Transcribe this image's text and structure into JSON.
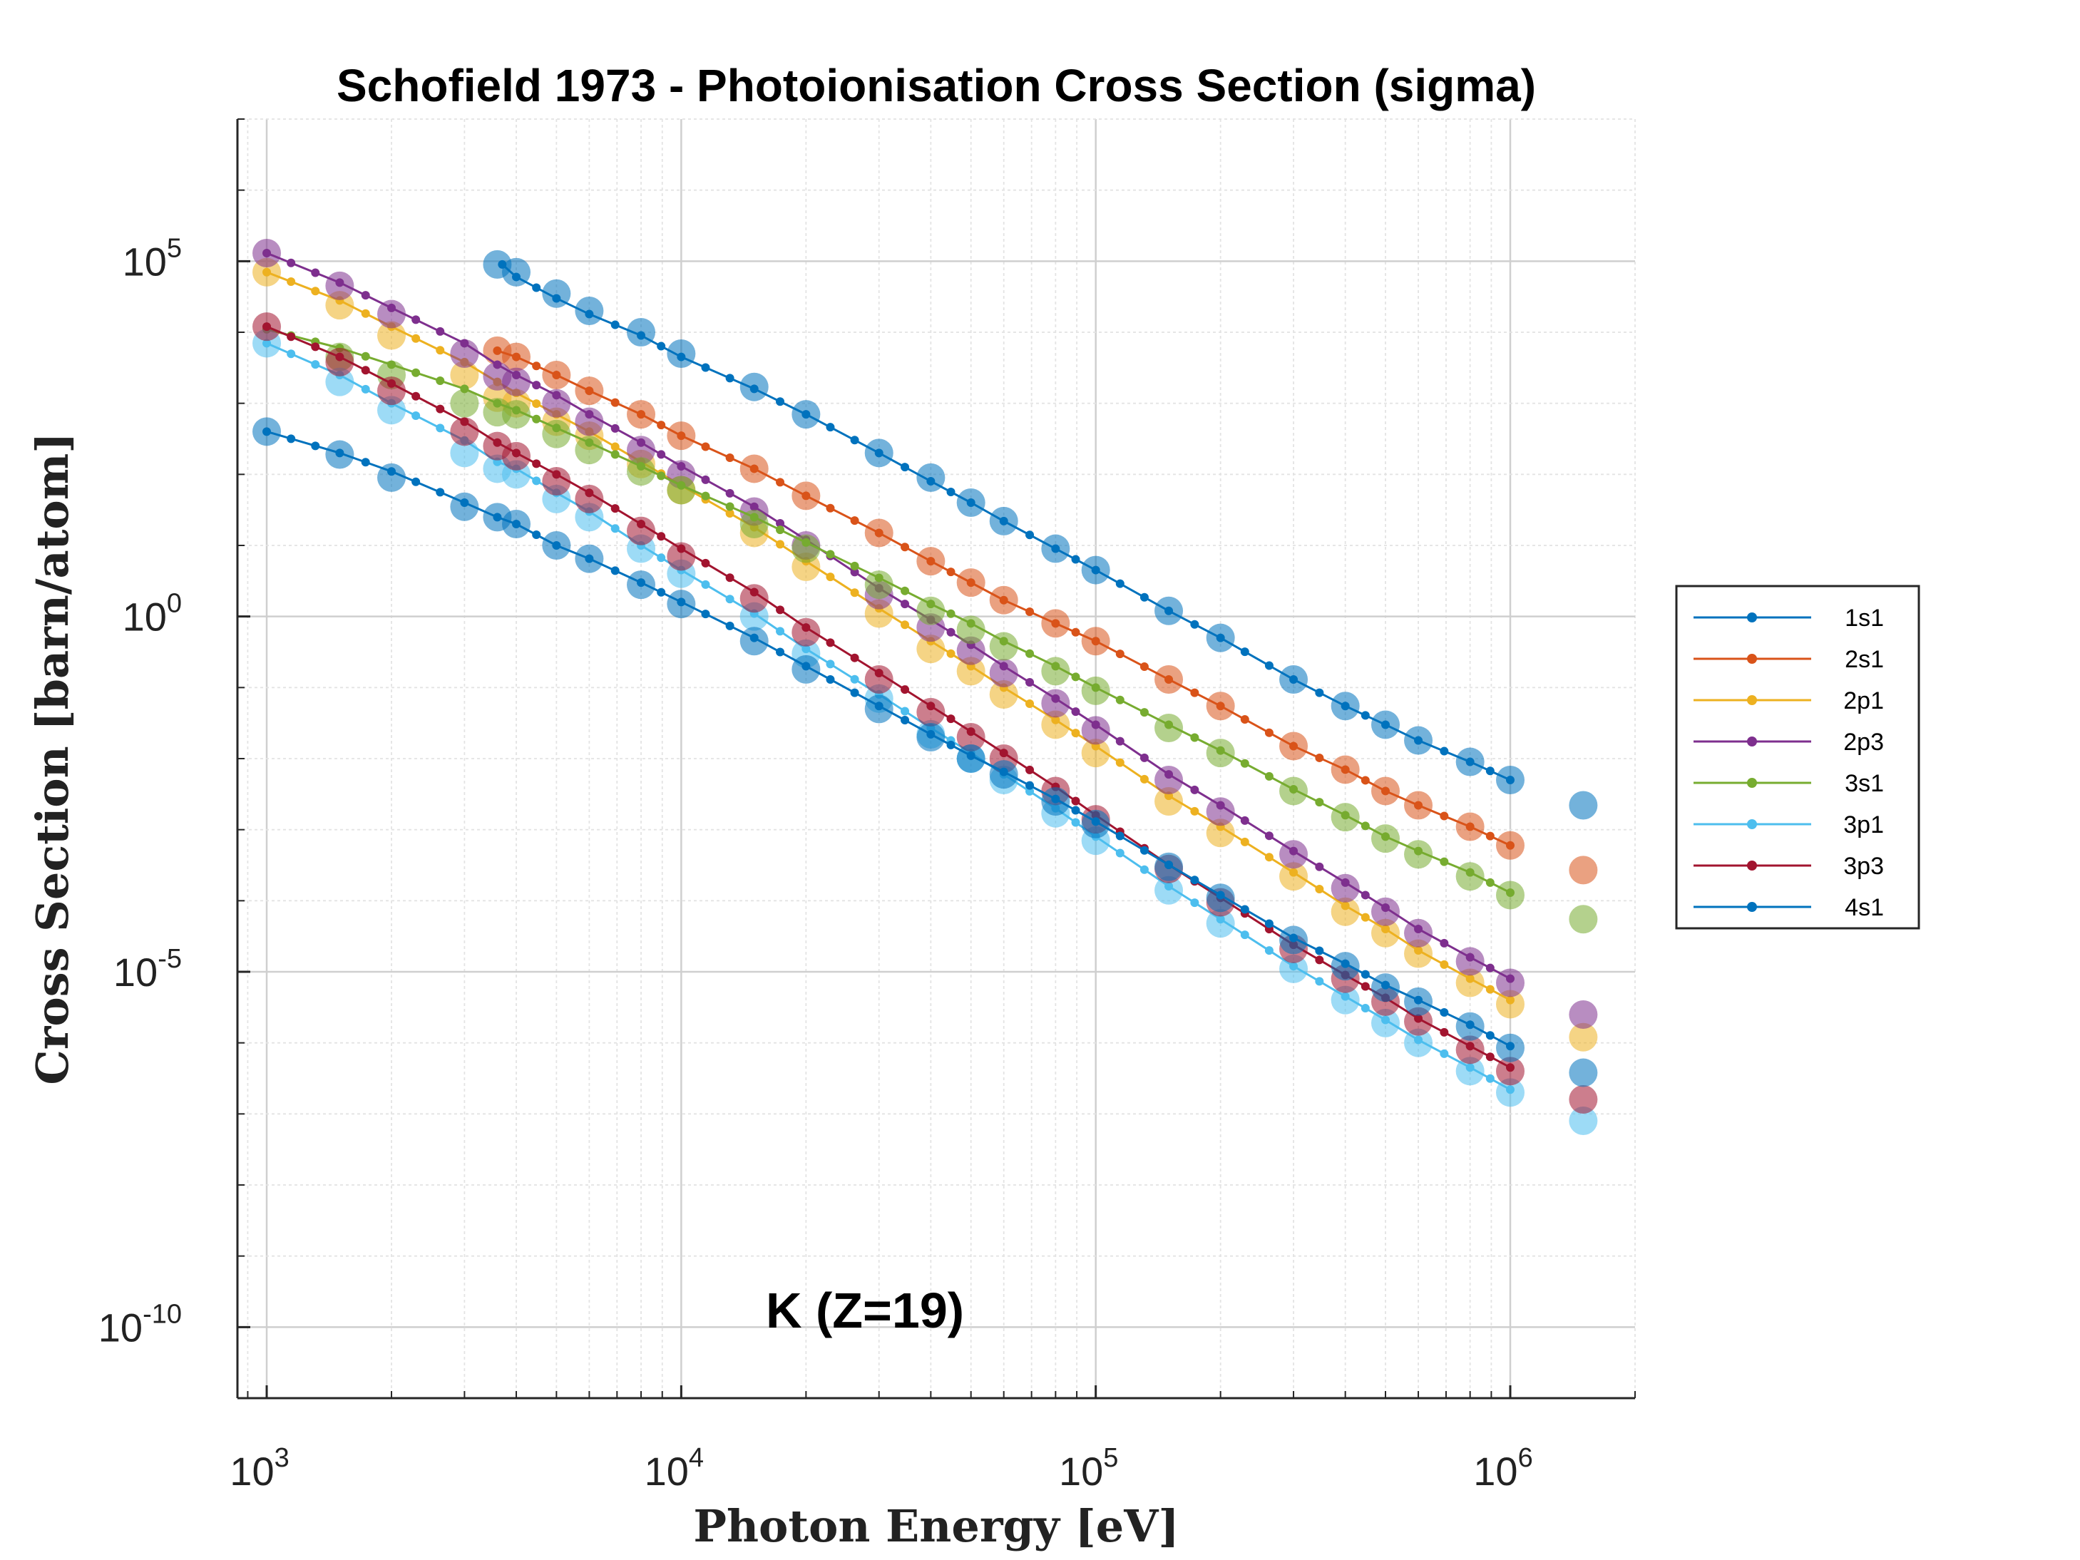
{
  "chart_data": {
    "type": "scatter",
    "title": "Schofield 1973 - Photoionisation Cross Section (sigma)",
    "xlabel": "Photon Energy [eV]",
    "ylabel": "Cross Section [barn/atom]",
    "annotation": "K (Z=19)",
    "xscale": "log",
    "yscale": "log",
    "xlim": [
      850,
      2000000
    ],
    "ylim": [
      1e-11,
      10000000.0
    ],
    "xticks": [
      {
        "value": 1000,
        "base": "10",
        "exp": "3"
      },
      {
        "value": 10000,
        "base": "10",
        "exp": "4"
      },
      {
        "value": 100000,
        "base": "10",
        "exp": "5"
      },
      {
        "value": 1000000,
        "base": "10",
        "exp": "6"
      }
    ],
    "yticks": [
      {
        "value": 1e-10,
        "base": "10",
        "exp": "-10"
      },
      {
        "value": 1e-05,
        "base": "10",
        "exp": "-5"
      },
      {
        "value": 1,
        "base": "10",
        "exp": "0"
      },
      {
        "value": 100000.0,
        "base": "10",
        "exp": "5"
      }
    ],
    "grid": true,
    "legend_position": "right",
    "series": [
      {
        "name": "1s1",
        "color": "#0072BD",
        "line_x": [
          3700,
          4000,
          5000,
          6000,
          8000,
          10000,
          15000,
          20000,
          30000,
          40000,
          50000,
          60000,
          80000,
          100000,
          150000,
          200000,
          300000,
          400000,
          500000,
          600000,
          800000,
          1000000
        ],
        "line_y": [
          90000,
          60000,
          30000,
          18000,
          9000,
          4500,
          1600,
          700,
          200,
          80,
          40,
          22,
          9,
          4.5,
          1.2,
          0.5,
          0.13,
          0.055,
          0.03,
          0.018,
          0.009,
          0.005
        ],
        "markers_x": [
          3600,
          4000,
          5000,
          6000,
          8000,
          10000,
          15000,
          20000,
          30000,
          40000,
          50000,
          60000,
          80000,
          100000,
          150000,
          200000,
          300000,
          400000,
          500000,
          600000,
          800000,
          1000000,
          1500000
        ],
        "markers_y": [
          90000,
          70000,
          35000,
          20000,
          10000,
          5000,
          1700,
          700,
          200,
          90,
          40,
          22,
          9,
          4.5,
          1.2,
          0.5,
          0.13,
          0.055,
          0.03,
          0.018,
          0.009,
          0.005,
          0.0022
        ]
      },
      {
        "name": "2s1",
        "color": "#D95319",
        "line_x": [
          3600,
          4000,
          5000,
          6000,
          8000,
          10000,
          15000,
          20000,
          30000,
          40000,
          50000,
          60000,
          80000,
          100000,
          150000,
          200000,
          300000,
          400000,
          500000,
          600000,
          800000,
          1000000
        ],
        "line_y": [
          5500,
          4500,
          2500,
          1500,
          700,
          350,
          120,
          50,
          15,
          6,
          3,
          1.7,
          0.8,
          0.45,
          0.13,
          0.055,
          0.015,
          0.007,
          0.0035,
          0.0022,
          0.0011,
          0.0006
        ],
        "markers_x": [
          3600,
          4000,
          5000,
          6000,
          8000,
          10000,
          15000,
          20000,
          30000,
          40000,
          50000,
          60000,
          80000,
          100000,
          150000,
          200000,
          300000,
          400000,
          500000,
          600000,
          800000,
          1000000,
          1500000
        ],
        "markers_y": [
          5500,
          4500,
          2500,
          1500,
          700,
          350,
          120,
          50,
          15,
          6,
          3,
          1.7,
          0.8,
          0.45,
          0.13,
          0.055,
          0.015,
          0.007,
          0.0035,
          0.0022,
          0.0011,
          0.0006,
          0.00027
        ]
      },
      {
        "name": "2p1",
        "color": "#EDB120",
        "line_x": [
          1000,
          1500,
          2000,
          3000,
          3600,
          4000,
          5000,
          6000,
          8000,
          10000,
          15000,
          20000,
          30000,
          40000,
          50000,
          60000,
          80000,
          100000,
          150000,
          200000,
          300000,
          400000,
          500000,
          600000,
          800000,
          1000000
        ],
        "line_y": [
          70000,
          28000,
          12000,
          3800,
          2000,
          1400,
          700,
          400,
          150,
          70,
          18,
          6,
          1.3,
          0.45,
          0.2,
          0.1,
          0.035,
          0.015,
          0.003,
          0.0011,
          0.00025,
          8.5e-05,
          4e-05,
          2e-05,
          8e-06,
          4e-06
        ],
        "markers_x": [
          1000,
          1500,
          2000,
          3000,
          3600,
          4000,
          5000,
          6000,
          8000,
          10000,
          15000,
          20000,
          30000,
          40000,
          50000,
          60000,
          80000,
          100000,
          150000,
          200000,
          300000,
          400000,
          500000,
          600000,
          800000,
          1000000,
          1500000
        ],
        "markers_y": [
          70000,
          24000,
          9000,
          2500,
          1200,
          1000,
          550,
          350,
          140,
          60,
          15,
          5,
          1.1,
          0.35,
          0.17,
          0.08,
          0.03,
          0.012,
          0.0025,
          0.0009,
          0.00022,
          7e-05,
          3.5e-05,
          1.8e-05,
          7e-06,
          3.5e-06,
          1.2e-06
        ]
      },
      {
        "name": "2p3",
        "color": "#7E2F8E",
        "line_x": [
          1000,
          1500,
          2000,
          3000,
          3600,
          4000,
          5000,
          6000,
          8000,
          10000,
          15000,
          20000,
          30000,
          40000,
          50000,
          60000,
          80000,
          100000,
          150000,
          200000,
          300000,
          400000,
          500000,
          600000,
          800000,
          1000000
        ],
        "line_y": [
          130000,
          50000,
          22000,
          7000,
          3500,
          2500,
          1300,
          700,
          280,
          130,
          35,
          12,
          2.5,
          0.9,
          0.4,
          0.2,
          0.07,
          0.03,
          0.006,
          0.0022,
          0.0005,
          0.00018,
          8e-05,
          4e-05,
          1.6e-05,
          8e-06
        ],
        "markers_x": [
          1000,
          1500,
          2000,
          3000,
          3600,
          4000,
          5000,
          6000,
          8000,
          10000,
          15000,
          20000,
          30000,
          40000,
          50000,
          60000,
          80000,
          100000,
          150000,
          200000,
          300000,
          400000,
          500000,
          600000,
          800000,
          1000000,
          1500000
        ],
        "markers_y": [
          130000,
          45000,
          18000,
          5000,
          2400,
          2000,
          1000,
          550,
          220,
          100,
          30,
          10,
          2,
          0.7,
          0.33,
          0.16,
          0.06,
          0.025,
          0.005,
          0.0018,
          0.00045,
          0.00015,
          7e-05,
          3.5e-05,
          1.4e-05,
          7e-06,
          2.5e-06
        ]
      },
      {
        "name": "3s1",
        "color": "#77AC30",
        "line_x": [
          1000,
          1500,
          2000,
          3000,
          3600,
          4000,
          5000,
          6000,
          8000,
          10000,
          15000,
          20000,
          30000,
          40000,
          50000,
          60000,
          80000,
          100000,
          150000,
          200000,
          300000,
          400000,
          500000,
          600000,
          800000,
          1000000
        ],
        "line_y": [
          11000,
          6000,
          3500,
          1600,
          1000,
          800,
          450,
          280,
          130,
          70,
          25,
          11,
          3.5,
          1.5,
          0.8,
          0.45,
          0.2,
          0.1,
          0.03,
          0.013,
          0.0037,
          0.0016,
          0.0008,
          0.0005,
          0.00025,
          0.00013
        ],
        "markers_x": [
          1500,
          2000,
          3000,
          3600,
          4000,
          5000,
          6000,
          8000,
          10000,
          15000,
          20000,
          30000,
          40000,
          50000,
          60000,
          80000,
          100000,
          150000,
          200000,
          300000,
          400000,
          500000,
          600000,
          800000,
          1000000,
          1500000
        ],
        "markers_y": [
          4500,
          2500,
          1000,
          750,
          700,
          370,
          220,
          110,
          60,
          20,
          9,
          2.8,
          1.2,
          0.65,
          0.38,
          0.17,
          0.09,
          0.027,
          0.012,
          0.0035,
          0.0015,
          0.00075,
          0.00045,
          0.00022,
          0.00012,
          5.5e-05
        ]
      },
      {
        "name": "3p1",
        "color": "#4DBEEE",
        "line_x": [
          1000,
          1500,
          2000,
          3000,
          3600,
          4000,
          5000,
          6000,
          8000,
          10000,
          15000,
          20000,
          30000,
          40000,
          50000,
          60000,
          80000,
          100000,
          150000,
          200000,
          300000,
          400000,
          500000,
          600000,
          800000,
          1000000
        ],
        "line_y": [
          7000,
          2500,
          1000,
          300,
          150,
          120,
          55,
          30,
          10,
          4.5,
          1.1,
          0.35,
          0.08,
          0.027,
          0.012,
          0.006,
          0.002,
          0.0008,
          0.00016,
          5.5e-05,
          1.2e-05,
          4.5e-06,
          2.1e-06,
          1.1e-06,
          4.5e-07,
          2.2e-07
        ],
        "markers_x": [
          1000,
          1500,
          2000,
          3000,
          3600,
          4000,
          5000,
          6000,
          8000,
          10000,
          15000,
          20000,
          30000,
          40000,
          50000,
          60000,
          80000,
          100000,
          150000,
          200000,
          300000,
          400000,
          500000,
          600000,
          800000,
          1000000,
          1500000
        ],
        "markers_y": [
          7000,
          2000,
          800,
          200,
          120,
          100,
          45,
          25,
          9,
          4,
          1,
          0.3,
          0.07,
          0.022,
          0.01,
          0.005,
          0.0017,
          0.0007,
          0.00014,
          4.8e-05,
          1.1e-05,
          4e-06,
          1.9e-06,
          1e-06,
          4e-07,
          2e-07,
          8e-08
        ]
      },
      {
        "name": "3p3",
        "color": "#A2142F",
        "line_x": [
          1000,
          1500,
          2000,
          3000,
          3600,
          4000,
          5000,
          6000,
          8000,
          10000,
          15000,
          20000,
          30000,
          40000,
          50000,
          60000,
          80000,
          100000,
          150000,
          200000,
          300000,
          400000,
          500000,
          600000,
          800000,
          1000000
        ],
        "line_y": [
          12000,
          4500,
          1900,
          550,
          280,
          200,
          100,
          55,
          20,
          9,
          2.2,
          0.7,
          0.16,
          0.055,
          0.024,
          0.012,
          0.004,
          0.0016,
          0.00032,
          0.00011,
          2.4e-05,
          9e-06,
          4.3e-06,
          2.2e-06,
          9e-07,
          4.5e-07
        ],
        "markers_x": [
          1000,
          1500,
          2000,
          3000,
          3600,
          4000,
          5000,
          6000,
          8000,
          10000,
          15000,
          20000,
          30000,
          40000,
          50000,
          60000,
          80000,
          100000,
          150000,
          200000,
          300000,
          400000,
          500000,
          600000,
          800000,
          1000000,
          1500000
        ],
        "markers_y": [
          12000,
          3800,
          1500,
          400,
          250,
          180,
          80,
          45,
          16,
          7,
          1.8,
          0.6,
          0.13,
          0.045,
          0.02,
          0.01,
          0.0035,
          0.0014,
          0.00028,
          9.5e-05,
          2.1e-05,
          8e-06,
          3.8e-06,
          2e-06,
          8e-07,
          4e-07,
          1.6e-07
        ]
      },
      {
        "name": "4s1",
        "color": "#0072BD",
        "line_x": [
          1000,
          1500,
          2000,
          3000,
          3600,
          4000,
          5000,
          6000,
          8000,
          10000,
          15000,
          20000,
          30000,
          40000,
          50000,
          60000,
          80000,
          100000,
          150000,
          200000,
          300000,
          400000,
          500000,
          600000,
          800000,
          1000000
        ],
        "line_y": [
          400,
          200,
          110,
          40,
          25,
          20,
          10,
          6.5,
          3,
          1.6,
          0.5,
          0.2,
          0.055,
          0.022,
          0.011,
          0.0065,
          0.0027,
          0.0013,
          0.00032,
          0.00012,
          3e-05,
          1.3e-05,
          6.5e-06,
          4e-06,
          1.8e-06,
          9e-07
        ],
        "markers_x": [
          1000,
          1500,
          2000,
          3000,
          3600,
          4000,
          5000,
          6000,
          8000,
          10000,
          15000,
          20000,
          30000,
          40000,
          50000,
          60000,
          80000,
          100000,
          150000,
          200000,
          300000,
          400000,
          500000,
          600000,
          800000,
          1000000,
          1500000
        ],
        "markers_y": [
          400,
          190,
          90,
          35,
          25,
          20,
          10,
          6.5,
          2.8,
          1.5,
          0.45,
          0.18,
          0.05,
          0.02,
          0.01,
          0.006,
          0.0025,
          0.0012,
          0.0003,
          0.00011,
          2.8e-05,
          1.2e-05,
          6e-06,
          3.8e-06,
          1.7e-06,
          8.5e-07,
          3.8e-07
        ]
      }
    ]
  }
}
